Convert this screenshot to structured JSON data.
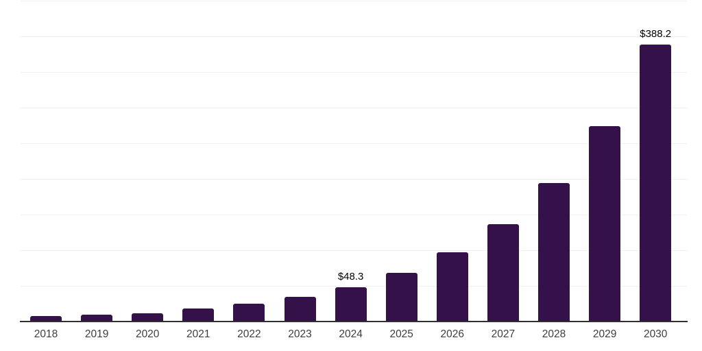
{
  "chart_data": {
    "type": "bar",
    "title": "",
    "xlabel": "",
    "ylabel": "",
    "categories": [
      "2018",
      "2019",
      "2020",
      "2021",
      "2022",
      "2023",
      "2024",
      "2025",
      "2026",
      "2027",
      "2028",
      "2029",
      "2030"
    ],
    "values": [
      7.7,
      9.3,
      12.0,
      18.0,
      24.7,
      34.3,
      48.3,
      68.4,
      96.8,
      137.0,
      193.9,
      274.5,
      388.2
    ],
    "data_labels": {
      "2024": "$48.3",
      "2030": "$388.2"
    },
    "ylim": [
      0,
      452
    ],
    "grid_step": 50,
    "grid": "horizontal only, unlabeled",
    "legend": "none",
    "bar_color": "#351149",
    "gridline_color": "#f0f0f1",
    "axis_line_color": "#2f2f2f",
    "tick_label_color": "#3d3d3d",
    "data_label_color": "#000000"
  }
}
